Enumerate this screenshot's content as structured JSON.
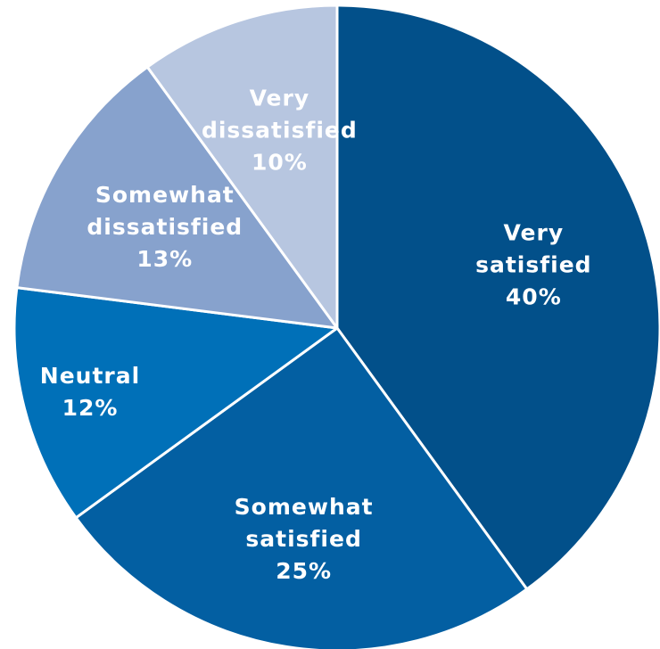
{
  "chart_data": {
    "type": "pie",
    "start_angle_deg": 0,
    "direction": "clockwise",
    "slices": [
      {
        "label_lines": [
          "Very",
          "satisfied",
          "40%"
        ],
        "value": 40,
        "color": "#02508A"
      },
      {
        "label_lines": [
          "Somewhat",
          "satisfied",
          "25%"
        ],
        "value": 25,
        "color": "#035FA2"
      },
      {
        "label_lines": [
          "Neutral",
          "12%"
        ],
        "value": 12,
        "color": "#0070B8"
      },
      {
        "label_lines": [
          "Somewhat",
          "dissatisfied",
          "13%"
        ],
        "value": 13,
        "color": "#87A2CD"
      },
      {
        "label_lines": [
          "Very",
          "dissatisfied",
          "10%"
        ],
        "value": 10,
        "color": "#B7C6E0"
      }
    ]
  }
}
